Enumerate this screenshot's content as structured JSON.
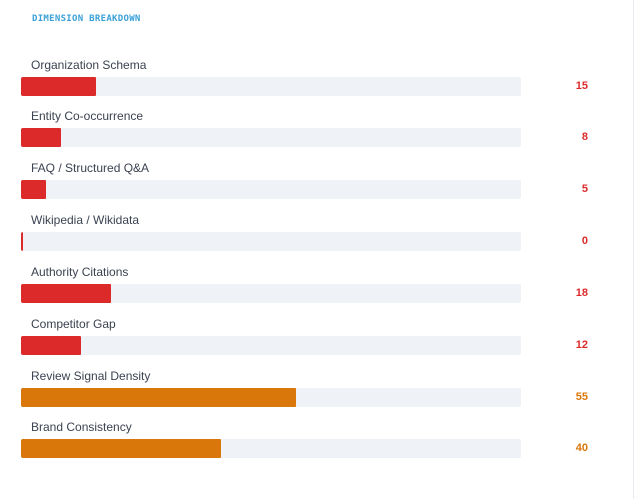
{
  "section": {
    "title": "DIMENSION BREAKDOWN"
  },
  "colors": {
    "low": "#dc2a2a",
    "mid": "#d9770a",
    "track": "#eff2f6"
  },
  "dimensions": [
    {
      "label": "Organization Schema",
      "value": "15",
      "score": 15,
      "level": "low"
    },
    {
      "label": "Entity Co-occurrence",
      "value": "8",
      "score": 8,
      "level": "low"
    },
    {
      "label": "FAQ / Structured Q&A",
      "value": "5",
      "score": 5,
      "level": "low"
    },
    {
      "label": "Wikipedia / Wikidata",
      "value": "0",
      "score": 0,
      "level": "low"
    },
    {
      "label": "Authority Citations",
      "value": "18",
      "score": 18,
      "level": "low"
    },
    {
      "label": "Competitor Gap",
      "value": "12",
      "score": 12,
      "level": "low"
    },
    {
      "label": "Review Signal Density",
      "value": "55",
      "score": 55,
      "level": "mid"
    },
    {
      "label": "Brand Consistency",
      "value": "40",
      "score": 40,
      "level": "mid"
    }
  ]
}
